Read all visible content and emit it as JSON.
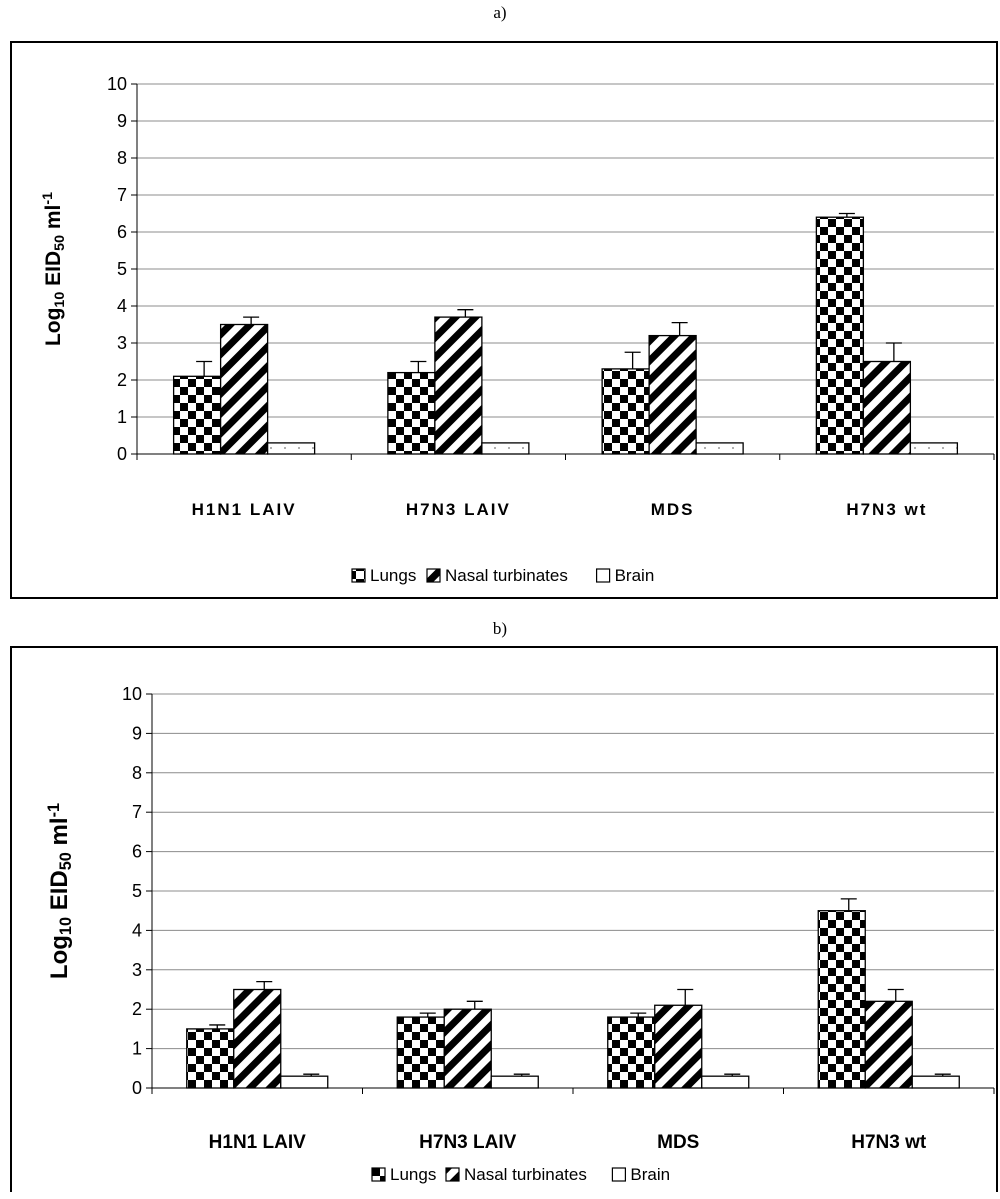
{
  "panels": [
    {
      "label": "a)"
    },
    {
      "label": "b)"
    }
  ],
  "chart_data": [
    {
      "type": "bar",
      "categories": [
        "H1N1 LAIV",
        "H7N3 LAIV",
        "MDS",
        "H7N3 wt"
      ],
      "ylabel": "Log10 EID50 ml-1",
      "ylim": [
        0,
        10
      ],
      "yticks": [
        0,
        1,
        2,
        3,
        4,
        5,
        6,
        7,
        8,
        9,
        10
      ],
      "grid": true,
      "legend_position": "bottom-center",
      "series": [
        {
          "name": "Lungs",
          "values": [
            2.1,
            2.2,
            2.3,
            6.4
          ],
          "errors": [
            0.4,
            0.3,
            0.45,
            0.1
          ],
          "pattern": "checker"
        },
        {
          "name": "Nasal turbinates",
          "values": [
            3.5,
            3.7,
            3.2,
            2.5
          ],
          "errors": [
            0.2,
            0.2,
            0.35,
            0.5
          ],
          "pattern": "diagonal"
        },
        {
          "name": "Brain",
          "values": [
            0.3,
            0.3,
            0.3,
            0.3
          ],
          "errors": [
            0,
            0,
            0,
            0
          ],
          "pattern": "dots"
        }
      ]
    },
    {
      "type": "bar",
      "categories": [
        "H1N1 LAIV",
        "H7N3 LAIV",
        "MDS",
        "H7N3 wt"
      ],
      "ylabel": "Log10 EID50 ml-1",
      "ylim": [
        0,
        10
      ],
      "yticks": [
        0,
        1,
        2,
        3,
        4,
        5,
        6,
        7,
        8,
        9,
        10
      ],
      "grid": true,
      "legend_position": "bottom-center",
      "series": [
        {
          "name": "Lungs",
          "values": [
            1.5,
            1.8,
            1.8,
            4.5
          ],
          "errors": [
            0.1,
            0.1,
            0.1,
            0.3
          ],
          "pattern": "checker"
        },
        {
          "name": "Nasal turbinates",
          "values": [
            2.5,
            2.0,
            2.1,
            2.2
          ],
          "errors": [
            0.2,
            0.2,
            0.4,
            0.3
          ],
          "pattern": "diagonal"
        },
        {
          "name": "Brain",
          "values": [
            0.3,
            0.3,
            0.3,
            0.3
          ],
          "errors": [
            0.05,
            0.05,
            0.05,
            0.05
          ],
          "pattern": "blank"
        }
      ]
    }
  ]
}
